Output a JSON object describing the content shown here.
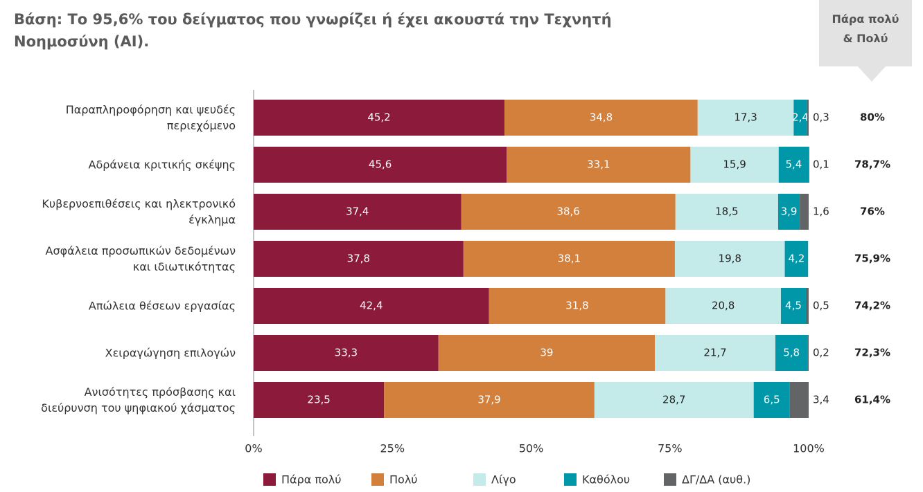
{
  "chart_data": {
    "type": "stacked-barh",
    "title": "Βάση: Το 95,6% του δείγματος που γνωρίζει ή έχει ακουστά την Τεχνητή\nΝοημοσύνη (AI).",
    "categories": [
      "Παραπληροφόρηση και ψευδές\nπεριεχόμενο",
      "Αδράνεια κριτικής σκέψης",
      "Κυβερνοεπιθέσεις και ηλεκτρονικό\nέγκλημα",
      "Ασφάλεια προσωπικών δεδομένων\nκαι ιδιωτικότητας",
      "Απώλεια θέσεων εργασίας",
      "Χειραγώγηση επιλογών",
      "Ανισότητες πρόσβασης και\nδιεύρυνση του ψηφιακού χάσματος"
    ],
    "series": [
      {
        "name": "Πάρα πολύ",
        "color": "#8c1a3b",
        "values": [
          45.2,
          45.6,
          37.4,
          37.8,
          42.4,
          33.3,
          23.5
        ],
        "value_labels": [
          "45,2",
          "45,6",
          "37,4",
          "37,8",
          "42,4",
          "33,3",
          "23,5"
        ]
      },
      {
        "name": "Πολύ",
        "color": "#d4803d",
        "values": [
          34.8,
          33.1,
          38.6,
          38.1,
          31.8,
          39,
          37.9
        ],
        "value_labels": [
          "34,8",
          "33,1",
          "38,6",
          "38,1",
          "31,8",
          "39",
          "37,9"
        ]
      },
      {
        "name": "Λίγο",
        "color": "#c5eaea",
        "values": [
          17.3,
          15.9,
          18.5,
          19.8,
          20.8,
          21.7,
          28.7
        ],
        "value_labels": [
          "17,3",
          "15,9",
          "18,5",
          "19,8",
          "20,8",
          "21,7",
          "28,7"
        ]
      },
      {
        "name": "Καθόλου",
        "color": "#0098a8",
        "values": [
          2.4,
          5.4,
          3.9,
          4.2,
          4.5,
          5.8,
          6.5
        ],
        "value_labels": [
          "2,4",
          "5,4",
          "3,9",
          "4,2",
          "4,5",
          "5,8",
          "6,5"
        ]
      },
      {
        "name": "ΔΓ/ΔΑ (αυθ.)",
        "color": "#636466",
        "values": [
          0.3,
          0.1,
          1.6,
          null,
          0.5,
          0.2,
          3.4
        ],
        "value_labels": [
          "0,3",
          "0,1",
          "1,6",
          null,
          "0,5",
          "0,2",
          "3,4"
        ]
      }
    ],
    "top2": {
      "title": "Πάρα πολύ\n& Πολύ",
      "values": [
        80,
        78.7,
        76,
        75.9,
        74.2,
        72.3,
        61.4
      ],
      "value_labels": [
        "80%",
        "78,7%",
        "76%",
        "75,9%",
        "74,2%",
        "72,3%",
        "61,4%"
      ]
    },
    "xlim": [
      0,
      100
    ],
    "xticks": [
      {
        "value": 0,
        "label": "0%"
      },
      {
        "value": 25,
        "label": "25%"
      },
      {
        "value": 50,
        "label": "50%"
      },
      {
        "value": 75,
        "label": "75%"
      },
      {
        "value": 100,
        "label": "100%"
      }
    ],
    "legend": "bottom"
  }
}
